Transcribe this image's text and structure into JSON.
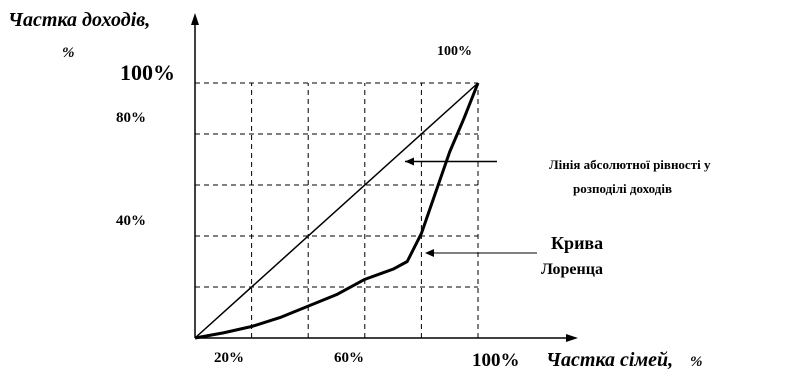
{
  "chart_data": {
    "type": "line",
    "ylabel": "Частка доходів,",
    "ylabel_unit": "%",
    "xlabel": "Частка сімей,",
    "xlabel_unit": "%",
    "top_label": "100%",
    "x_tick_labels": [
      "20%",
      "60%",
      "100%"
    ],
    "y_tick_labels": [
      "100%",
      "80%",
      "40%"
    ],
    "xlim": [
      0,
      100
    ],
    "ylim": [
      0,
      100
    ],
    "grid": true,
    "grid_style": "dashed",
    "series": [
      {
        "name": "equality",
        "x": [
          0,
          100
        ],
        "y": [
          0,
          100
        ],
        "color": "#000000"
      },
      {
        "name": "lorenz",
        "x": [
          0,
          10,
          20,
          30,
          40,
          50,
          60,
          70,
          75,
          80,
          85,
          90,
          95,
          100
        ],
        "y": [
          0,
          2,
          4.5,
          8,
          12.5,
          17,
          23,
          27,
          30,
          41,
          57,
          73,
          86,
          100
        ],
        "color": "#000000"
      }
    ],
    "annotations": [
      {
        "text_lines": [
          "Лінія абсолютної рівності у",
          "розподілі доходів"
        ],
        "target": "equality",
        "arrow_at_x": 70
      },
      {
        "text_lines": [
          "Крива",
          "Лоренца"
        ],
        "target": "lorenz",
        "arrow_at_x": 80
      }
    ]
  }
}
